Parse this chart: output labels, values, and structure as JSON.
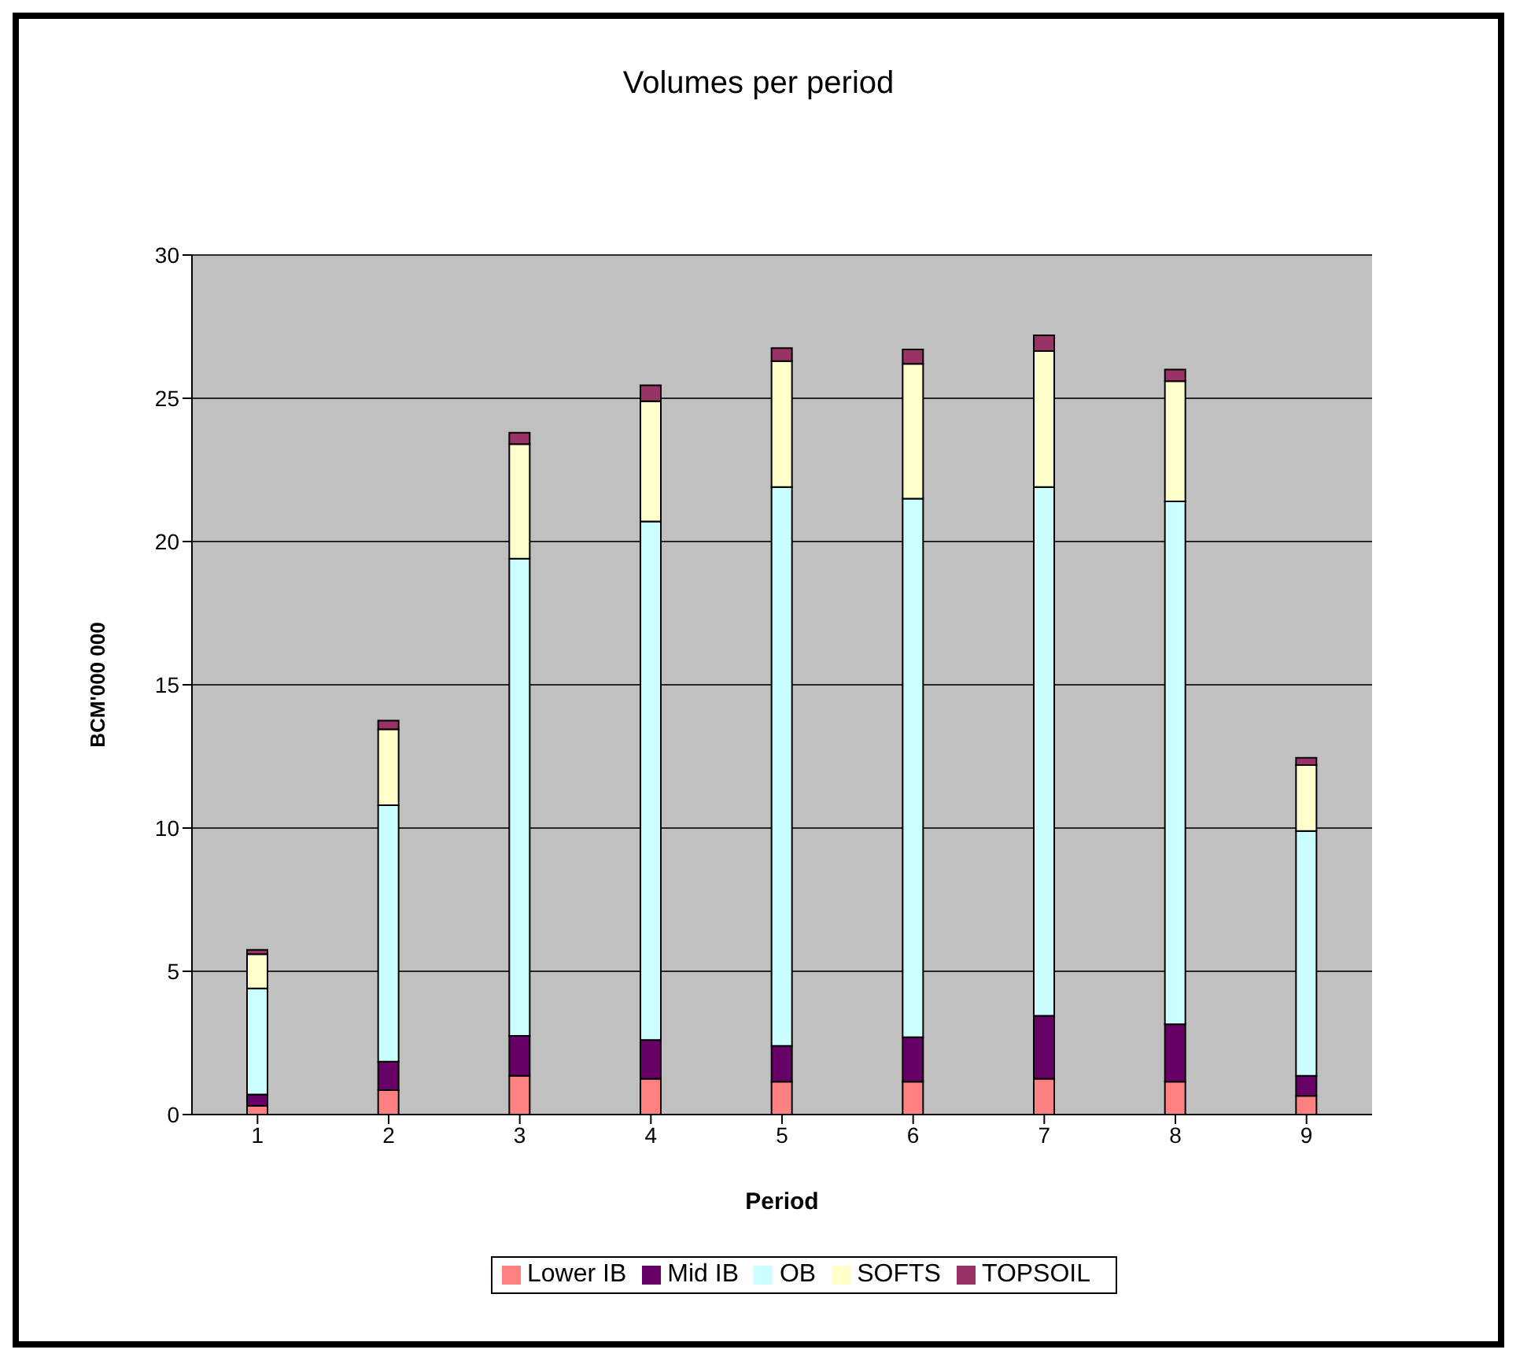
{
  "chart_data": {
    "type": "bar",
    "title": "Volumes per period",
    "xlabel": "Period",
    "ylabel": "BCM'000 000",
    "stacked": true,
    "categories": [
      "1",
      "2",
      "3",
      "4",
      "5",
      "6",
      "7",
      "8",
      "9"
    ],
    "series": [
      {
        "name": "Lower IB",
        "color": "#ff8080",
        "values": [
          0.3,
          0.85,
          1.35,
          1.25,
          1.15,
          1.15,
          1.25,
          1.15,
          0.65
        ]
      },
      {
        "name": "Mid IB",
        "color": "#660066",
        "values": [
          0.4,
          1.0,
          1.4,
          1.35,
          1.25,
          1.55,
          2.2,
          2.0,
          0.7
        ]
      },
      {
        "name": "OB",
        "color": "#ccffff",
        "values": [
          3.7,
          8.95,
          16.65,
          18.1,
          19.5,
          18.8,
          18.45,
          18.25,
          8.55
        ]
      },
      {
        "name": "SOFTS",
        "color": "#ffffcc",
        "values": [
          1.2,
          2.65,
          4.0,
          4.2,
          4.4,
          4.7,
          4.75,
          4.2,
          2.3
        ]
      },
      {
        "name": "TOPSOIL",
        "color": "#993366",
        "values": [
          0.15,
          0.3,
          0.4,
          0.55,
          0.45,
          0.5,
          0.55,
          0.4,
          0.25
        ]
      }
    ],
    "ylim": [
      0,
      30
    ],
    "yticks": [
      0,
      5,
      10,
      15,
      20,
      25,
      30
    ],
    "grid": "y",
    "legend": "bottom"
  }
}
